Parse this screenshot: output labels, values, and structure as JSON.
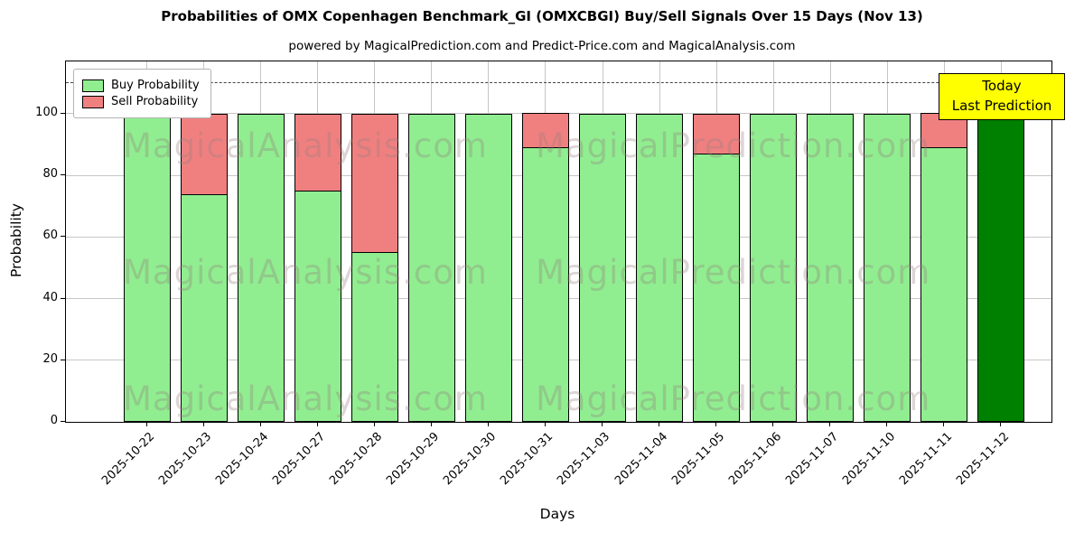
{
  "title": "Probabilities of OMX Copenhagen Benchmark_GI (OMXCBGI) Buy/Sell Signals Over 15 Days (Nov 13)",
  "subtitle": "powered by MagicalPrediction.com and Predict-Price.com and MagicalAnalysis.com",
  "legend": {
    "items": [
      {
        "label": "Buy Probability",
        "color": "#90EE90"
      },
      {
        "label": "Sell Probability",
        "color": "#F08080"
      }
    ]
  },
  "annotation": {
    "line1": "Today",
    "line2": "Last Prediction",
    "bg_color": "#FFFF00"
  },
  "watermarks": {
    "left": "MagicalAnalysis.com",
    "right": "MagicalPrediction.com"
  },
  "chart_data": {
    "type": "bar",
    "stacked": true,
    "title": "Probabilities of OMX Copenhagen Benchmark_GI (OMXCBGI) Buy/Sell Signals Over 15 Days (Nov 13)",
    "xlabel": "Days",
    "ylabel": "Probability",
    "categories": [
      "2025-10-22",
      "2025-10-23",
      "2025-10-24",
      "2025-10-27",
      "2025-10-28",
      "2025-10-29",
      "2025-10-30",
      "2025-10-31",
      "2025-11-03",
      "2025-11-04",
      "2025-11-05",
      "2025-11-06",
      "2025-11-07",
      "2025-11-10",
      "2025-11-11",
      "2025-11-12"
    ],
    "series": [
      {
        "name": "Buy Probability",
        "color": "#90EE90",
        "values": [
          100,
          74,
          100,
          75,
          55,
          100,
          100,
          89,
          100,
          100,
          87,
          100,
          100,
          100,
          89,
          100
        ]
      },
      {
        "name": "Sell Probability",
        "color": "#F08080",
        "values": [
          0,
          26,
          0,
          25,
          45,
          0,
          0,
          11,
          0,
          0,
          13,
          0,
          0,
          0,
          11,
          0
        ]
      }
    ],
    "today_bar": {
      "category": "2025-11-12",
      "index": 15,
      "color": "#008000"
    },
    "yticks": [
      0,
      20,
      40,
      60,
      80,
      100
    ],
    "ylim": [
      0,
      117
    ],
    "reference_line_y": 110,
    "grid": true,
    "legend_position": "upper left"
  }
}
